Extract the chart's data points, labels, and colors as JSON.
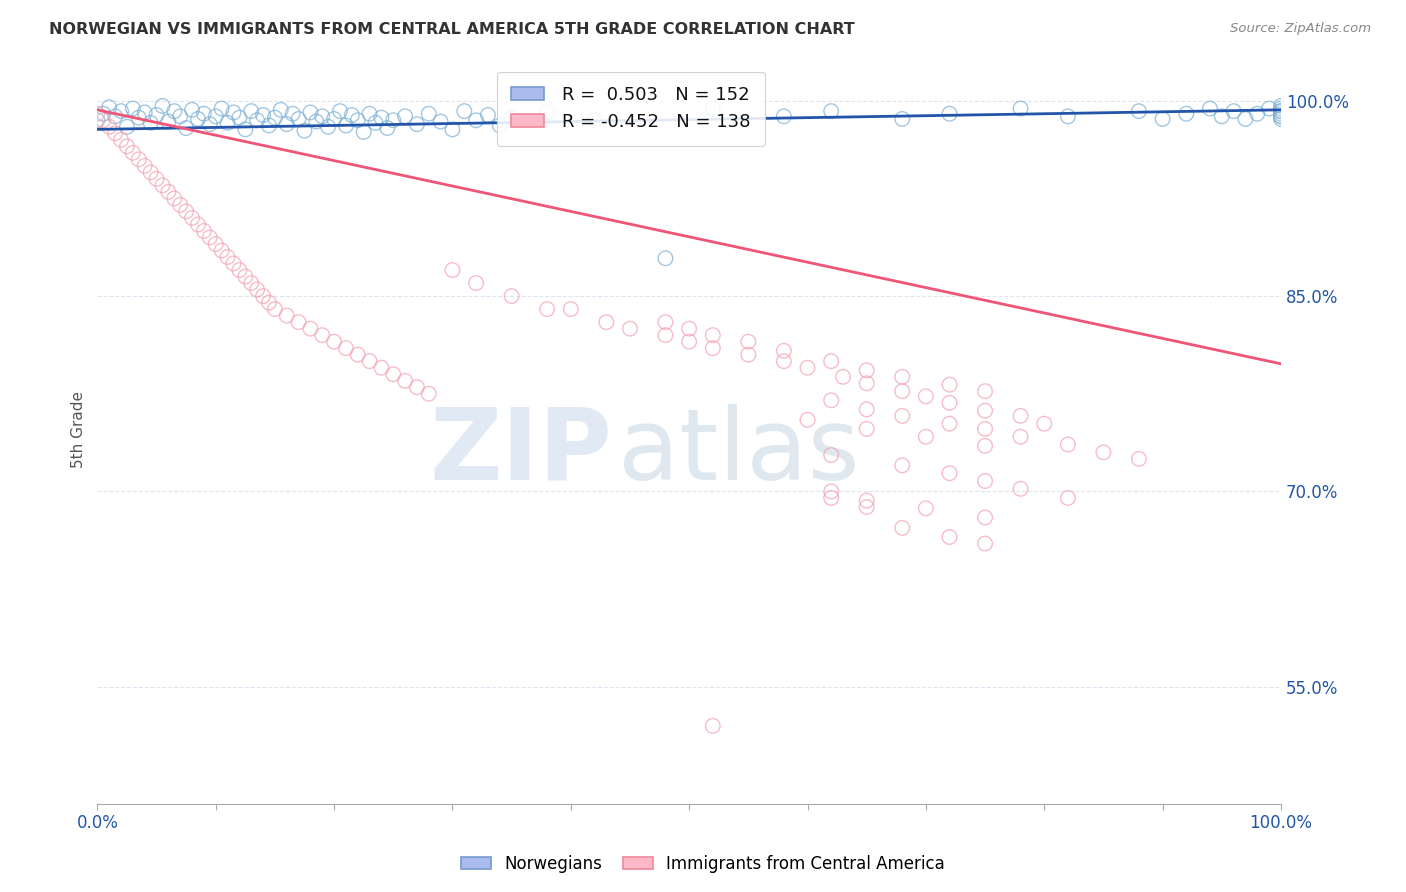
{
  "title": "NORWEGIAN VS IMMIGRANTS FROM CENTRAL AMERICA 5TH GRADE CORRELATION CHART",
  "source": "Source: ZipAtlas.com",
  "ylabel": "5th Grade",
  "xlim": [
    0.0,
    1.0
  ],
  "ylim": [
    0.46,
    1.035
  ],
  "ytick_labels": [
    "55.0%",
    "70.0%",
    "85.0%",
    "100.0%"
  ],
  "ytick_values": [
    0.55,
    0.7,
    0.85,
    1.0
  ],
  "xtick_values": [
    0.0,
    0.1,
    0.2,
    0.3,
    0.4,
    0.5,
    0.6,
    0.7,
    0.8,
    0.9,
    1.0
  ],
  "blue_color": "#7BAFD4",
  "pink_color": "#F4A0B0",
  "blue_line_color": "#2255AA",
  "pink_line_color": "#EE5577",
  "watermark_zip": "ZIP",
  "watermark_atlas": "atlas",
  "watermark_color_zip": "#C5D5E8",
  "watermark_color_atlas": "#C8D8E8",
  "bg_color": "#FFFFFF",
  "grid_color": "#E0E4F0",
  "blue_scatter_x": [
    0.0,
    0.005,
    0.01,
    0.015,
    0.02,
    0.025,
    0.03,
    0.035,
    0.04,
    0.045,
    0.05,
    0.055,
    0.06,
    0.065,
    0.07,
    0.075,
    0.08,
    0.085,
    0.09,
    0.095,
    0.1,
    0.105,
    0.11,
    0.115,
    0.12,
    0.125,
    0.13,
    0.135,
    0.14,
    0.145,
    0.15,
    0.155,
    0.16,
    0.165,
    0.17,
    0.175,
    0.18,
    0.185,
    0.19,
    0.195,
    0.2,
    0.205,
    0.21,
    0.215,
    0.22,
    0.225,
    0.23,
    0.235,
    0.24,
    0.245,
    0.25,
    0.26,
    0.27,
    0.28,
    0.29,
    0.3,
    0.31,
    0.32,
    0.33,
    0.34,
    0.35,
    0.38,
    0.42,
    0.48,
    0.52,
    0.58,
    0.62,
    0.68,
    0.72,
    0.78,
    0.82,
    0.88,
    0.9,
    0.92,
    0.94,
    0.95,
    0.96,
    0.97,
    0.98,
    0.99,
    1.0,
    1.0,
    1.0,
    1.0,
    1.0,
    1.0,
    1.0,
    1.0
  ],
  "blue_scatter_y": [
    0.985,
    0.99,
    0.995,
    0.988,
    0.992,
    0.98,
    0.994,
    0.987,
    0.991,
    0.983,
    0.989,
    0.996,
    0.984,
    0.992,
    0.988,
    0.979,
    0.993,
    0.986,
    0.99,
    0.982,
    0.988,
    0.994,
    0.983,
    0.991,
    0.987,
    0.978,
    0.992,
    0.985,
    0.989,
    0.981,
    0.987,
    0.993,
    0.982,
    0.99,
    0.986,
    0.977,
    0.991,
    0.984,
    0.988,
    0.98,
    0.986,
    0.992,
    0.981,
    0.989,
    0.985,
    0.976,
    0.99,
    0.983,
    0.987,
    0.979,
    0.985,
    0.988,
    0.982,
    0.99,
    0.984,
    0.978,
    0.992,
    0.985,
    0.989,
    0.981,
    0.987,
    0.991,
    0.985,
    0.879,
    0.994,
    0.988,
    0.992,
    0.986,
    0.99,
    0.994,
    0.988,
    0.992,
    0.986,
    0.99,
    0.994,
    0.988,
    0.992,
    0.986,
    0.99,
    0.994,
    0.988,
    0.992,
    0.986,
    0.99,
    0.994,
    0.988,
    0.992,
    0.996
  ],
  "pink_scatter_x": [
    0.0,
    0.005,
    0.01,
    0.015,
    0.02,
    0.025,
    0.03,
    0.035,
    0.04,
    0.045,
    0.05,
    0.055,
    0.06,
    0.065,
    0.07,
    0.075,
    0.08,
    0.085,
    0.09,
    0.095,
    0.1,
    0.105,
    0.11,
    0.115,
    0.12,
    0.125,
    0.13,
    0.135,
    0.14,
    0.145,
    0.15,
    0.16,
    0.17,
    0.18,
    0.19,
    0.2,
    0.21,
    0.22,
    0.23,
    0.24,
    0.25,
    0.26,
    0.27,
    0.28,
    0.3,
    0.32,
    0.35,
    0.38,
    0.4,
    0.43,
    0.45,
    0.48,
    0.5,
    0.52,
    0.55,
    0.58,
    0.6,
    0.63,
    0.65,
    0.68,
    0.7,
    0.72,
    0.75,
    0.78,
    0.8,
    0.48,
    0.5,
    0.52,
    0.55,
    0.58,
    0.62,
    0.65,
    0.68,
    0.72,
    0.75,
    0.62,
    0.65,
    0.68,
    0.72,
    0.75,
    0.78,
    0.82,
    0.85,
    0.88,
    0.6,
    0.65,
    0.7,
    0.75,
    0.62,
    0.68,
    0.72,
    0.75,
    0.78,
    0.82,
    0.62,
    0.65,
    0.7,
    0.75,
    0.68,
    0.72,
    0.75,
    0.62,
    0.65,
    0.52
  ],
  "pink_scatter_y": [
    0.99,
    0.985,
    0.98,
    0.975,
    0.97,
    0.965,
    0.96,
    0.955,
    0.95,
    0.945,
    0.94,
    0.935,
    0.93,
    0.925,
    0.92,
    0.915,
    0.91,
    0.905,
    0.9,
    0.895,
    0.89,
    0.885,
    0.88,
    0.875,
    0.87,
    0.865,
    0.86,
    0.855,
    0.85,
    0.845,
    0.84,
    0.835,
    0.83,
    0.825,
    0.82,
    0.815,
    0.81,
    0.805,
    0.8,
    0.795,
    0.79,
    0.785,
    0.78,
    0.775,
    0.87,
    0.86,
    0.85,
    0.84,
    0.84,
    0.83,
    0.825,
    0.82,
    0.815,
    0.81,
    0.805,
    0.8,
    0.795,
    0.788,
    0.783,
    0.777,
    0.773,
    0.768,
    0.762,
    0.758,
    0.752,
    0.83,
    0.825,
    0.82,
    0.815,
    0.808,
    0.8,
    0.793,
    0.788,
    0.782,
    0.777,
    0.77,
    0.763,
    0.758,
    0.752,
    0.748,
    0.742,
    0.736,
    0.73,
    0.725,
    0.755,
    0.748,
    0.742,
    0.735,
    0.728,
    0.72,
    0.714,
    0.708,
    0.702,
    0.695,
    0.7,
    0.693,
    0.687,
    0.68,
    0.672,
    0.665,
    0.66,
    0.695,
    0.688,
    0.52
  ],
  "blue_trendline_x": [
    0.0,
    1.0
  ],
  "blue_trendline_y": [
    0.978,
    0.993
  ],
  "pink_trendline_x": [
    0.0,
    1.0
  ],
  "pink_trendline_y": [
    0.993,
    0.798
  ]
}
